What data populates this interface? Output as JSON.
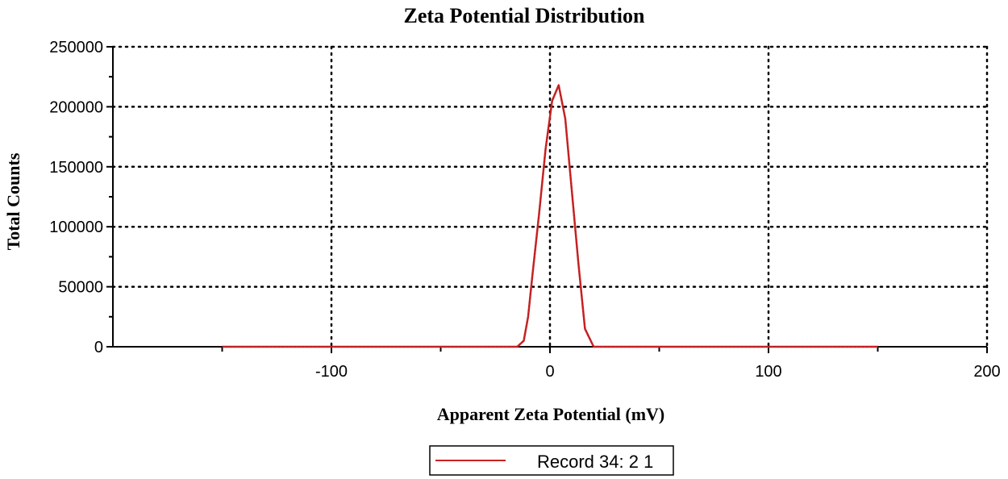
{
  "chart_data": {
    "type": "line",
    "title": "Zeta Potential Distribution",
    "xlabel": "Apparent Zeta Potential (mV)",
    "ylabel": "Total Counts",
    "xlim": [
      -200,
      200
    ],
    "ylim": [
      0,
      250000
    ],
    "x_ticks": [
      -100,
      0,
      100,
      200
    ],
    "x_tick_labels": [
      "-100",
      "0",
      "100",
      "200"
    ],
    "y_ticks": [
      0,
      50000,
      100000,
      150000,
      200000,
      250000
    ],
    "y_tick_labels": [
      "0",
      "50000",
      "100000",
      "150000",
      "200000",
      "250000"
    ],
    "grid": true,
    "legend": "bottom-center",
    "series": [
      {
        "name": "Record 34: 2 1",
        "color": "#cc2222",
        "x": [
          -150,
          -100,
          -50,
          -15,
          -12,
          -10,
          -8,
          -5,
          -2,
          1,
          4,
          7,
          10,
          13,
          16,
          20,
          50,
          100,
          150
        ],
        "y": [
          0,
          0,
          0,
          0,
          5000,
          25000,
          60000,
          110000,
          165000,
          205000,
          218000,
          190000,
          130000,
          70000,
          15000,
          0,
          0,
          0,
          0
        ]
      }
    ]
  }
}
